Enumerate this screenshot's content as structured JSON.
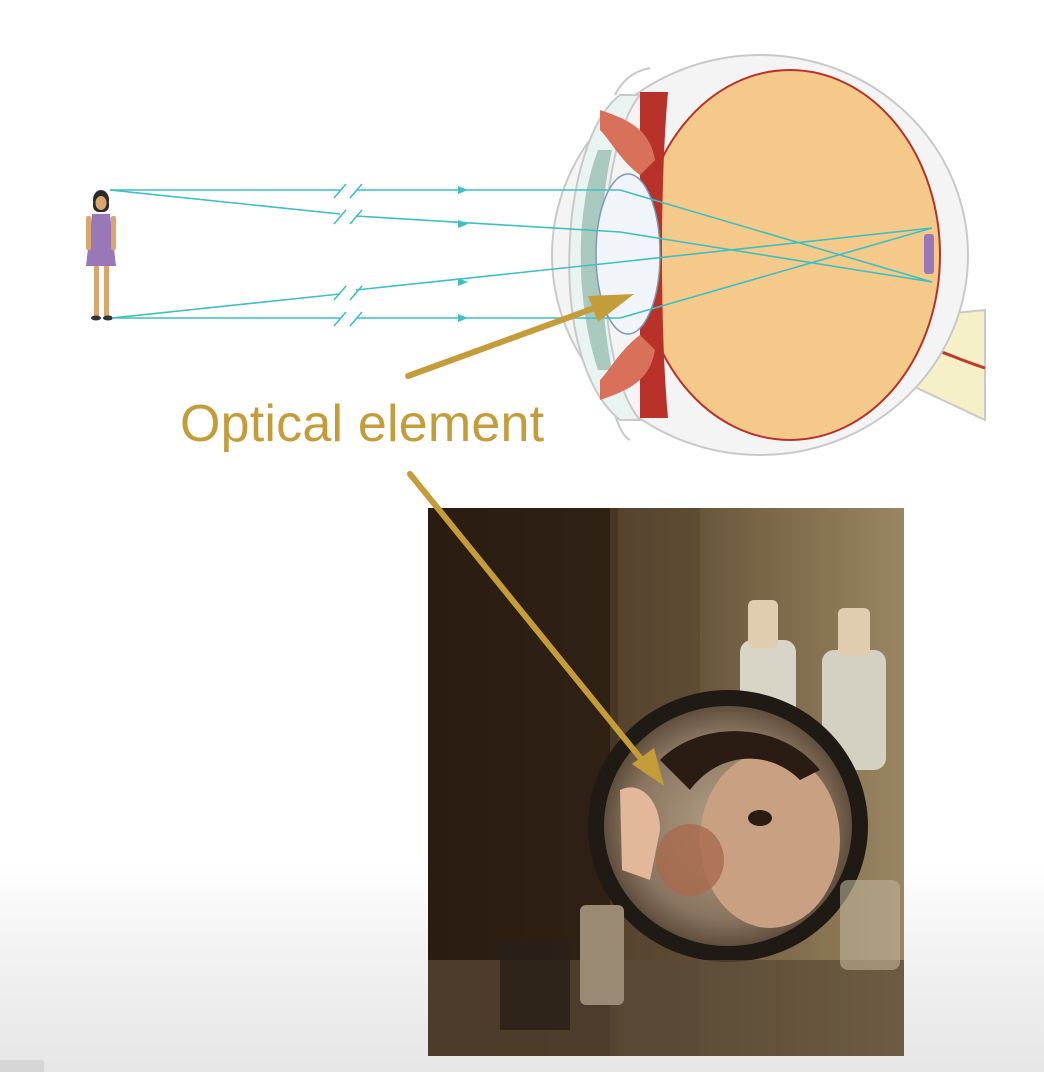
{
  "annotation": {
    "label": "Optical element"
  },
  "colors": {
    "annotation": "#c59c3a",
    "ray": "#3fbfc0",
    "lens_gel": "#f5c98a",
    "iris": "#b8322a",
    "sclera_outline": "#c9c9c9"
  },
  "icons": {
    "figure": "woman-figure-icon",
    "eye": "eye-cross-section-icon",
    "photo": "mirror-photo-icon"
  }
}
